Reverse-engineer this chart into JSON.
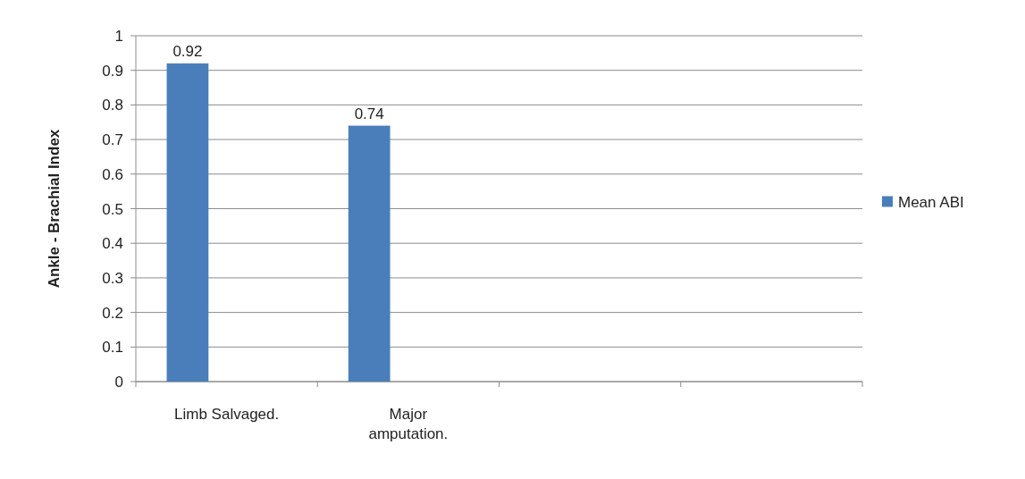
{
  "chart_data": {
    "type": "bar",
    "ylabel": "Ankle - Brachial Index",
    "categories": [
      "Limb Salvaged.",
      "Major amputation.",
      null,
      null
    ],
    "series": [
      {
        "name": "Mean ABI",
        "color": "#4a7ebb",
        "values": [
          0.92,
          0.74,
          null,
          null
        ]
      }
    ],
    "ylim": [
      0,
      1
    ],
    "yticks": [
      {
        "value": 0,
        "label": "0"
      },
      0.1,
      0.2,
      0.3,
      0.4,
      0.5,
      0.6,
      0.7,
      0.8,
      0.9,
      {
        "value": 1,
        "label": "1"
      }
    ],
    "grid": "y",
    "legend": "right",
    "data_labels": true
  }
}
